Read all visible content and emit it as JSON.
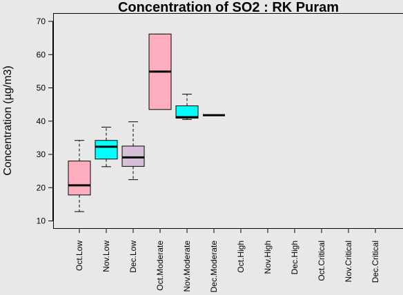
{
  "chart_data": {
    "type": "boxplot",
    "title": "Concentration of SO2 : RK Puram",
    "ylabel": "Concentration (µg/m3)",
    "xlabel": "",
    "ylim": [
      8,
      72
    ],
    "yticks": [
      10,
      20,
      30,
      40,
      50,
      60,
      70
    ],
    "grid": false,
    "categories": [
      "Oct.Low",
      "Nov.Low",
      "Dec.Low",
      "Oct.Moderate",
      "Nov.Moderate",
      "Dec.Moderate",
      "Oct.High",
      "Nov.High",
      "Dec.High",
      "Oct.Critical",
      "Nov.Critical",
      "Dec.Critical"
    ],
    "boxes": [
      {
        "min": 12.8,
        "q1": 17.8,
        "median": 20.7,
        "q3": 28.0,
        "max": 34.2,
        "color": "#ffaec0"
      },
      {
        "min": 26.3,
        "q1": 28.6,
        "median": 32.3,
        "q3": 34.2,
        "max": 38.2,
        "color": "#00ffff"
      },
      {
        "min": 22.4,
        "q1": 26.4,
        "median": 29.1,
        "q3": 32.5,
        "max": 39.8,
        "color": "#d8bfd8"
      },
      {
        "min": 43.5,
        "q1": 43.5,
        "median": 54.9,
        "q3": 66.2,
        "max": 66.2,
        "color": "#ffaec0"
      },
      {
        "min": 40.5,
        "q1": 40.9,
        "median": 41.2,
        "q3": 44.6,
        "max": 48.1,
        "color": "#00ffff"
      },
      {
        "min": 41.8,
        "q1": 41.8,
        "median": 41.8,
        "q3": 41.8,
        "max": 41.8,
        "color": "#d8bfd8"
      },
      null,
      null,
      null,
      null,
      null,
      null
    ]
  }
}
